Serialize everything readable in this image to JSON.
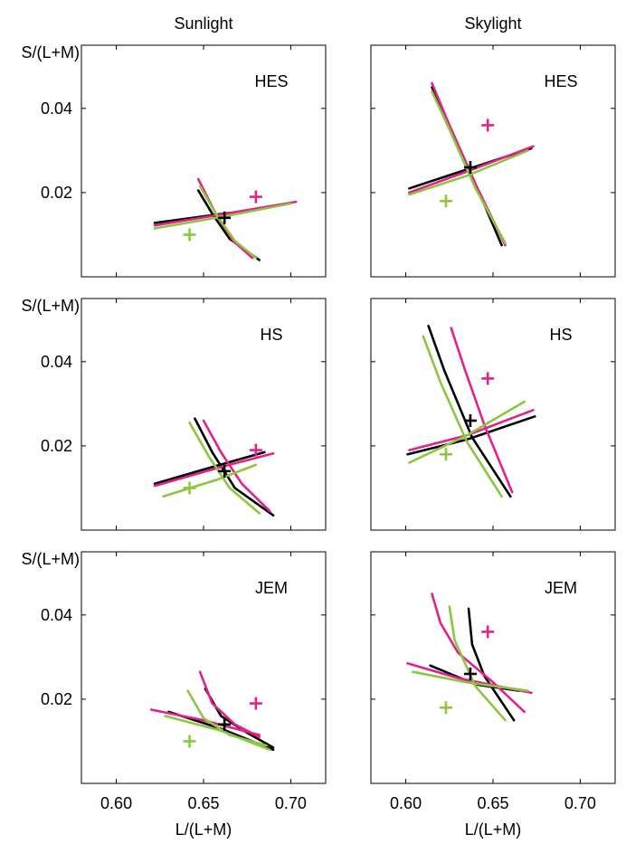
{
  "figure": {
    "column_titles": [
      "Sunlight",
      "Skylight"
    ],
    "row_labels": [
      "HES",
      "HS",
      "JEM"
    ],
    "ylabel": "S/(L+M)",
    "xlabel": "L/(L+M)",
    "xticks": [
      "0.60",
      "0.65",
      "0.70"
    ],
    "yticks": [
      "0.04",
      "0.02"
    ]
  },
  "colors": {
    "black": "#000000",
    "magenta": "#e3218a",
    "green": "#8cc63f"
  },
  "chart_data": [
    {
      "type": "line",
      "panel": "HES-Sunlight",
      "xlim": [
        0.58,
        0.72
      ],
      "ylim": [
        0.0,
        0.055
      ],
      "series": [
        {
          "color": "black",
          "points": [
            [
              0.622,
              0.0128
            ],
            [
              0.665,
              0.0152
            ]
          ]
        },
        {
          "color": "black",
          "points": [
            [
              0.647,
              0.0205
            ],
            [
              0.655,
              0.015
            ],
            [
              0.665,
              0.009
            ],
            [
              0.682,
              0.004
            ]
          ]
        },
        {
          "color": "magenta",
          "points": [
            [
              0.622,
              0.0122
            ],
            [
              0.66,
              0.0148
            ],
            [
              0.703,
              0.0178
            ]
          ]
        },
        {
          "color": "magenta",
          "points": [
            [
              0.647,
              0.0232
            ],
            [
              0.657,
              0.015
            ],
            [
              0.667,
              0.0085
            ],
            [
              0.678,
              0.0045
            ]
          ]
        },
        {
          "color": "green",
          "points": [
            [
              0.622,
              0.0115
            ],
            [
              0.66,
              0.0142
            ],
            [
              0.7,
              0.0174
            ]
          ]
        },
        {
          "color": "green",
          "points": [
            [
              0.648,
              0.0215
            ],
            [
              0.657,
              0.015
            ],
            [
              0.668,
              0.0085
            ],
            [
              0.68,
              0.0045
            ]
          ]
        }
      ],
      "markers": [
        {
          "color": "black",
          "x": 0.662,
          "y": 0.014
        },
        {
          "color": "magenta",
          "x": 0.68,
          "y": 0.019
        },
        {
          "color": "green",
          "x": 0.642,
          "y": 0.01
        }
      ]
    },
    {
      "type": "line",
      "panel": "HES-Skylight",
      "xlim": [
        0.58,
        0.72
      ],
      "ylim": [
        0.0,
        0.055
      ],
      "series": [
        {
          "color": "black",
          "points": [
            [
              0.602,
              0.021
            ],
            [
              0.635,
              0.0255
            ],
            [
              0.672,
              0.0305
            ]
          ]
        },
        {
          "color": "black",
          "points": [
            [
              0.615,
              0.045
            ],
            [
              0.625,
              0.036
            ],
            [
              0.64,
              0.022
            ],
            [
              0.655,
              0.0075
            ]
          ]
        },
        {
          "color": "magenta",
          "points": [
            [
              0.602,
              0.02
            ],
            [
              0.635,
              0.025
            ],
            [
              0.673,
              0.031
            ]
          ]
        },
        {
          "color": "magenta",
          "points": [
            [
              0.615,
              0.046
            ],
            [
              0.625,
              0.036
            ],
            [
              0.64,
              0.022
            ],
            [
              0.657,
              0.0075
            ]
          ]
        },
        {
          "color": "green",
          "points": [
            [
              0.602,
              0.0195
            ],
            [
              0.635,
              0.024
            ],
            [
              0.67,
              0.03
            ]
          ]
        },
        {
          "color": "green",
          "points": [
            [
              0.615,
              0.044
            ],
            [
              0.625,
              0.035
            ],
            [
              0.64,
              0.021
            ],
            [
              0.657,
              0.008
            ]
          ]
        }
      ],
      "markers": [
        {
          "color": "black",
          "x": 0.637,
          "y": 0.026
        },
        {
          "color": "magenta",
          "x": 0.647,
          "y": 0.036
        },
        {
          "color": "green",
          "x": 0.623,
          "y": 0.018
        }
      ]
    },
    {
      "type": "line",
      "panel": "HS-Sunlight",
      "xlim": [
        0.58,
        0.72
      ],
      "ylim": [
        0.0,
        0.055
      ],
      "series": [
        {
          "color": "black",
          "points": [
            [
              0.622,
              0.011
            ],
            [
              0.655,
              0.015
            ],
            [
              0.685,
              0.0185
            ]
          ]
        },
        {
          "color": "black",
          "points": [
            [
              0.645,
              0.0265
            ],
            [
              0.655,
              0.0185
            ],
            [
              0.668,
              0.01
            ],
            [
              0.69,
              0.0035
            ]
          ]
        },
        {
          "color": "magenta",
          "points": [
            [
              0.622,
              0.0105
            ],
            [
              0.66,
              0.015
            ],
            [
              0.69,
              0.0182
            ]
          ]
        },
        {
          "color": "magenta",
          "points": [
            [
              0.65,
              0.026
            ],
            [
              0.66,
              0.0185
            ],
            [
              0.672,
              0.011
            ],
            [
              0.688,
              0.0045
            ]
          ]
        },
        {
          "color": "green",
          "points": [
            [
              0.627,
              0.008
            ],
            [
              0.658,
              0.012
            ],
            [
              0.68,
              0.0155
            ]
          ]
        },
        {
          "color": "green",
          "points": [
            [
              0.642,
              0.0255
            ],
            [
              0.653,
              0.0175
            ],
            [
              0.665,
              0.01
            ],
            [
              0.682,
              0.004
            ]
          ]
        }
      ],
      "markers": [
        {
          "color": "black",
          "x": 0.662,
          "y": 0.014
        },
        {
          "color": "magenta",
          "x": 0.68,
          "y": 0.019
        },
        {
          "color": "green",
          "x": 0.642,
          "y": 0.01
        }
      ]
    },
    {
      "type": "line",
      "panel": "HS-Skylight",
      "xlim": [
        0.58,
        0.72
      ],
      "ylim": [
        0.0,
        0.055
      ],
      "series": [
        {
          "color": "black",
          "points": [
            [
              0.601,
              0.018
            ],
            [
              0.635,
              0.0215
            ],
            [
              0.674,
              0.027
            ]
          ]
        },
        {
          "color": "black",
          "points": [
            [
              0.613,
              0.0485
            ],
            [
              0.622,
              0.038
            ],
            [
              0.638,
              0.022
            ],
            [
              0.66,
              0.008
            ]
          ]
        },
        {
          "color": "magenta",
          "points": [
            [
              0.602,
              0.019
            ],
            [
              0.635,
              0.0225
            ],
            [
              0.673,
              0.0285
            ]
          ]
        },
        {
          "color": "magenta",
          "points": [
            [
              0.626,
              0.048
            ],
            [
              0.634,
              0.038
            ],
            [
              0.645,
              0.025
            ],
            [
              0.661,
              0.009
            ]
          ]
        },
        {
          "color": "green",
          "points": [
            [
              0.602,
              0.016
            ],
            [
              0.635,
              0.0225
            ],
            [
              0.668,
              0.0305
            ]
          ]
        },
        {
          "color": "green",
          "points": [
            [
              0.61,
              0.046
            ],
            [
              0.62,
              0.035
            ],
            [
              0.635,
              0.021
            ],
            [
              0.655,
              0.008
            ]
          ]
        }
      ],
      "markers": [
        {
          "color": "black",
          "x": 0.637,
          "y": 0.026
        },
        {
          "color": "magenta",
          "x": 0.647,
          "y": 0.036
        },
        {
          "color": "green",
          "x": 0.623,
          "y": 0.018
        }
      ]
    },
    {
      "type": "line",
      "panel": "JEM-Sunlight",
      "xlim": [
        0.58,
        0.72
      ],
      "ylim": [
        0.0,
        0.055
      ],
      "series": [
        {
          "color": "black",
          "points": [
            [
              0.63,
              0.017
            ],
            [
              0.66,
              0.013
            ],
            [
              0.69,
              0.008
            ]
          ]
        },
        {
          "color": "black",
          "points": [
            [
              0.651,
              0.0225
            ],
            [
              0.66,
              0.016
            ],
            [
              0.675,
              0.012
            ],
            [
              0.69,
              0.0085
            ]
          ]
        },
        {
          "color": "magenta",
          "points": [
            [
              0.62,
              0.0175
            ],
            [
              0.65,
              0.015
            ],
            [
              0.682,
              0.0115
            ]
          ]
        },
        {
          "color": "magenta",
          "points": [
            [
              0.648,
              0.0265
            ],
            [
              0.655,
              0.019
            ],
            [
              0.668,
              0.014
            ],
            [
              0.682,
              0.011
            ]
          ]
        },
        {
          "color": "green",
          "points": [
            [
              0.628,
              0.016
            ],
            [
              0.66,
              0.0125
            ],
            [
              0.688,
              0.008
            ]
          ]
        },
        {
          "color": "green",
          "points": [
            [
              0.641,
              0.022
            ],
            [
              0.65,
              0.0155
            ],
            [
              0.665,
              0.0115
            ],
            [
              0.686,
              0.009
            ]
          ]
        }
      ],
      "markers": [
        {
          "color": "black",
          "x": 0.662,
          "y": 0.014
        },
        {
          "color": "magenta",
          "x": 0.68,
          "y": 0.019
        },
        {
          "color": "green",
          "x": 0.642,
          "y": 0.01
        }
      ]
    },
    {
      "type": "line",
      "panel": "JEM-Skylight",
      "xlim": [
        0.58,
        0.72
      ],
      "ylim": [
        0.0,
        0.055
      ],
      "series": [
        {
          "color": "black",
          "points": [
            [
              0.614,
              0.028
            ],
            [
              0.64,
              0.0235
            ],
            [
              0.665,
              0.022
            ]
          ]
        },
        {
          "color": "black",
          "points": [
            [
              0.636,
              0.0415
            ],
            [
              0.638,
              0.033
            ],
            [
              0.645,
              0.0255
            ],
            [
              0.662,
              0.015
            ]
          ]
        },
        {
          "color": "magenta",
          "points": [
            [
              0.601,
              0.0285
            ],
            [
              0.63,
              0.025
            ],
            [
              0.672,
              0.0215
            ]
          ]
        },
        {
          "color": "magenta",
          "points": [
            [
              0.615,
              0.045
            ],
            [
              0.62,
              0.038
            ],
            [
              0.63,
              0.031
            ],
            [
              0.65,
              0.024
            ],
            [
              0.668,
              0.017
            ]
          ]
        },
        {
          "color": "green",
          "points": [
            [
              0.604,
              0.0265
            ],
            [
              0.635,
              0.024
            ],
            [
              0.67,
              0.022
            ]
          ]
        },
        {
          "color": "green",
          "points": [
            [
              0.625,
              0.042
            ],
            [
              0.628,
              0.034
            ],
            [
              0.64,
              0.023
            ],
            [
              0.657,
              0.015
            ]
          ]
        }
      ],
      "markers": [
        {
          "color": "black",
          "x": 0.637,
          "y": 0.026
        },
        {
          "color": "magenta",
          "x": 0.647,
          "y": 0.036
        },
        {
          "color": "green",
          "x": 0.623,
          "y": 0.018
        }
      ]
    }
  ]
}
